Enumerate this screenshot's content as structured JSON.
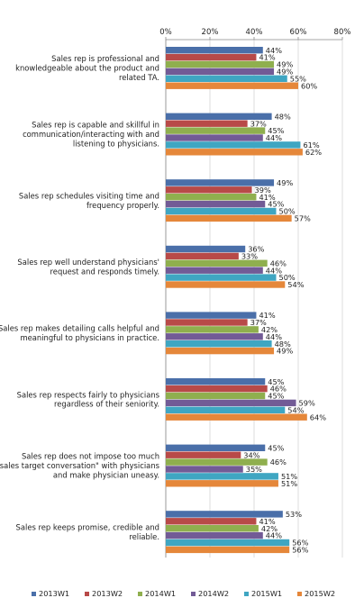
{
  "chart_data": {
    "type": "bar",
    "orientation": "horizontal",
    "xlim": [
      0,
      80
    ],
    "x_ticks": [
      "0%",
      "20%",
      "40%",
      "60%",
      "80%"
    ],
    "x_tick_values": [
      0,
      20,
      40,
      60,
      80
    ],
    "value_unit": "%",
    "grid": true,
    "legend_position": "bottom",
    "categories": [
      [
        "Sales rep is professional and",
        "knowledgeable about the product and",
        "related TA."
      ],
      [
        "Sales rep is capable and skillful in",
        "communication/interacting with and",
        "listening to physicians."
      ],
      [
        "Sales rep schedules visiting time and",
        "frequency properly."
      ],
      [
        "Sales rep well understand physicians'",
        "request and responds timely."
      ],
      [
        "Sales rep makes detailing calls helpful and",
        "meaningful to physicians in practice."
      ],
      [
        "Sales rep respects fairly to physicians",
        "regardless of their seniority."
      ],
      [
        "Sales rep does not impose too much",
        "sales target conversation\" with physicians",
        "and make physician uneasy."
      ],
      [
        "Sales rep keeps promise, credible and",
        "reliable."
      ]
    ],
    "series": [
      {
        "name": "2013W1",
        "color": "#4A6FA9",
        "values": [
          44,
          48,
          49,
          36,
          41,
          45,
          45,
          53
        ]
      },
      {
        "name": "2013W2",
        "color": "#B84A48",
        "values": [
          41,
          37,
          39,
          33,
          37,
          46,
          34,
          41
        ]
      },
      {
        "name": "2014W1",
        "color": "#8FAF4E",
        "values": [
          49,
          45,
          41,
          46,
          42,
          45,
          46,
          42
        ]
      },
      {
        "name": "2014W2",
        "color": "#725B96",
        "values": [
          49,
          44,
          45,
          44,
          44,
          59,
          35,
          44
        ]
      },
      {
        "name": "2015W1",
        "color": "#3FA6C2",
        "values": [
          55,
          61,
          50,
          50,
          48,
          54,
          51,
          56
        ]
      },
      {
        "name": "2015W2",
        "color": "#E5873A",
        "values": [
          60,
          62,
          57,
          54,
          49,
          64,
          51,
          56
        ]
      }
    ]
  }
}
